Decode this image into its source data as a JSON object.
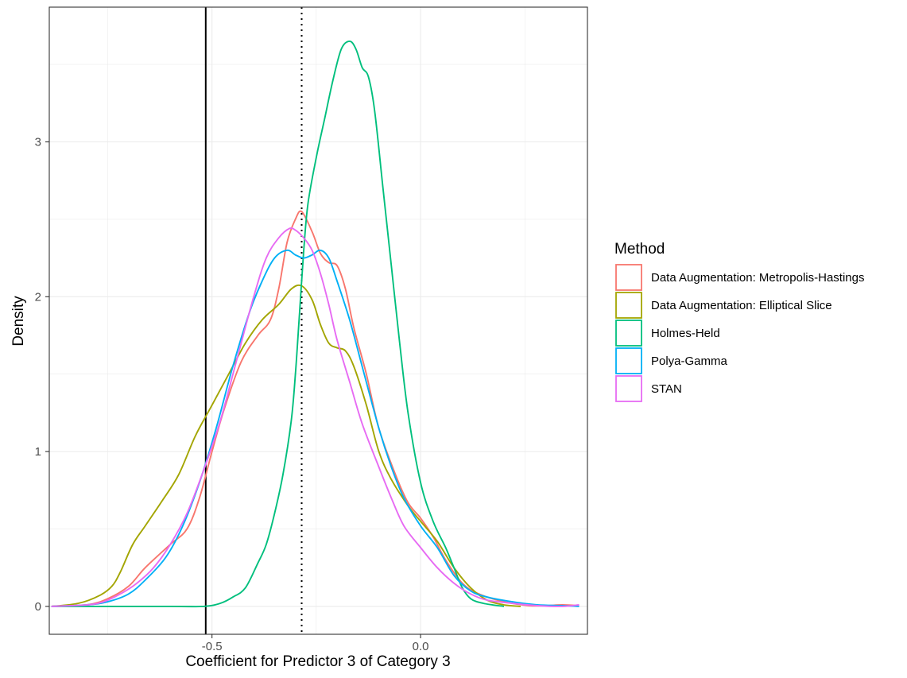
{
  "chart_data": {
    "type": "line",
    "xlabel": "Coefficient for Predictor 3 of Category 3",
    "ylabel": "Density",
    "xlim": [
      -0.89,
      0.4
    ],
    "ylim": [
      -0.18,
      3.87
    ],
    "x_ticks": [
      -0.5,
      0.0
    ],
    "x_tick_labels": [
      "-0.5",
      "0.0"
    ],
    "y_ticks": [
      0,
      1,
      2,
      3
    ],
    "y_tick_labels": [
      "0",
      "1",
      "2",
      "3"
    ],
    "grid": true,
    "legend": {
      "title": "Method",
      "position": "right"
    },
    "reference_lines": [
      {
        "x": -0.515,
        "style": "solid",
        "color": "#000000"
      },
      {
        "x": -0.285,
        "style": "dotted",
        "color": "#000000"
      }
    ],
    "series": [
      {
        "name": "Data Augmentation: Metropolis-Hastings",
        "color": "#F8766D",
        "points": [
          [
            -0.885,
            0
          ],
          [
            -0.8,
            0.01
          ],
          [
            -0.75,
            0.05
          ],
          [
            -0.7,
            0.13
          ],
          [
            -0.66,
            0.25
          ],
          [
            -0.6,
            0.4
          ],
          [
            -0.56,
            0.5
          ],
          [
            -0.53,
            0.7
          ],
          [
            -0.5,
            1.0
          ],
          [
            -0.47,
            1.28
          ],
          [
            -0.43,
            1.58
          ],
          [
            -0.39,
            1.75
          ],
          [
            -0.36,
            1.85
          ],
          [
            -0.34,
            2.05
          ],
          [
            -0.32,
            2.35
          ],
          [
            -0.3,
            2.5
          ],
          [
            -0.285,
            2.55
          ],
          [
            -0.26,
            2.42
          ],
          [
            -0.24,
            2.28
          ],
          [
            -0.22,
            2.22
          ],
          [
            -0.2,
            2.2
          ],
          [
            -0.18,
            2.05
          ],
          [
            -0.16,
            1.8
          ],
          [
            -0.13,
            1.5
          ],
          [
            -0.1,
            1.15
          ],
          [
            -0.06,
            0.85
          ],
          [
            -0.03,
            0.67
          ],
          [
            0.0,
            0.57
          ],
          [
            0.03,
            0.45
          ],
          [
            0.06,
            0.3
          ],
          [
            0.1,
            0.15
          ],
          [
            0.14,
            0.08
          ],
          [
            0.2,
            0.03
          ],
          [
            0.26,
            0.005
          ],
          [
            0.3,
            0.005
          ],
          [
            0.34,
            0.01
          ],
          [
            0.38,
            0.005
          ]
        ]
      },
      {
        "name": "Data Augmentation: Elliptical Slice",
        "color": "#A3A500",
        "points": [
          [
            -0.885,
            0
          ],
          [
            -0.82,
            0.02
          ],
          [
            -0.77,
            0.07
          ],
          [
            -0.74,
            0.13
          ],
          [
            -0.72,
            0.22
          ],
          [
            -0.69,
            0.4
          ],
          [
            -0.66,
            0.52
          ],
          [
            -0.62,
            0.68
          ],
          [
            -0.58,
            0.85
          ],
          [
            -0.54,
            1.1
          ],
          [
            -0.5,
            1.3
          ],
          [
            -0.46,
            1.5
          ],
          [
            -0.42,
            1.7
          ],
          [
            -0.38,
            1.85
          ],
          [
            -0.34,
            1.95
          ],
          [
            -0.31,
            2.05
          ],
          [
            -0.285,
            2.07
          ],
          [
            -0.26,
            1.98
          ],
          [
            -0.24,
            1.82
          ],
          [
            -0.22,
            1.7
          ],
          [
            -0.2,
            1.67
          ],
          [
            -0.18,
            1.65
          ],
          [
            -0.16,
            1.55
          ],
          [
            -0.13,
            1.3
          ],
          [
            -0.1,
            1.0
          ],
          [
            -0.07,
            0.82
          ],
          [
            -0.03,
            0.65
          ],
          [
            0.0,
            0.55
          ],
          [
            0.04,
            0.42
          ],
          [
            0.08,
            0.25
          ],
          [
            0.12,
            0.12
          ],
          [
            0.16,
            0.04
          ],
          [
            0.2,
            0.01
          ],
          [
            0.24,
            0.0
          ]
        ]
      },
      {
        "name": "Holmes-Held",
        "color": "#00BF7D",
        "points": [
          [
            -0.885,
            0
          ],
          [
            -0.6,
            0
          ],
          [
            -0.52,
            0.0
          ],
          [
            -0.48,
            0.02
          ],
          [
            -0.45,
            0.06
          ],
          [
            -0.42,
            0.12
          ],
          [
            -0.39,
            0.28
          ],
          [
            -0.37,
            0.4
          ],
          [
            -0.35,
            0.6
          ],
          [
            -0.33,
            0.85
          ],
          [
            -0.31,
            1.2
          ],
          [
            -0.3,
            1.5
          ],
          [
            -0.29,
            1.9
          ],
          [
            -0.28,
            2.3
          ],
          [
            -0.27,
            2.6
          ],
          [
            -0.25,
            2.9
          ],
          [
            -0.23,
            3.15
          ],
          [
            -0.21,
            3.4
          ],
          [
            -0.19,
            3.6
          ],
          [
            -0.17,
            3.65
          ],
          [
            -0.155,
            3.6
          ],
          [
            -0.14,
            3.48
          ],
          [
            -0.125,
            3.42
          ],
          [
            -0.11,
            3.2
          ],
          [
            -0.09,
            2.7
          ],
          [
            -0.07,
            2.2
          ],
          [
            -0.05,
            1.7
          ],
          [
            -0.03,
            1.25
          ],
          [
            0.0,
            0.8
          ],
          [
            0.03,
            0.55
          ],
          [
            0.06,
            0.38
          ],
          [
            0.08,
            0.25
          ],
          [
            0.1,
            0.12
          ],
          [
            0.12,
            0.05
          ],
          [
            0.15,
            0.02
          ],
          [
            0.2,
            0.0
          ]
        ]
      },
      {
        "name": "Polya-Gamma",
        "color": "#00B0F6",
        "points": [
          [
            -0.885,
            0
          ],
          [
            -0.8,
            0.01
          ],
          [
            -0.75,
            0.03
          ],
          [
            -0.7,
            0.08
          ],
          [
            -0.66,
            0.17
          ],
          [
            -0.61,
            0.32
          ],
          [
            -0.57,
            0.52
          ],
          [
            -0.53,
            0.8
          ],
          [
            -0.49,
            1.15
          ],
          [
            -0.45,
            1.55
          ],
          [
            -0.41,
            1.9
          ],
          [
            -0.38,
            2.1
          ],
          [
            -0.35,
            2.25
          ],
          [
            -0.32,
            2.3
          ],
          [
            -0.3,
            2.27
          ],
          [
            -0.28,
            2.25
          ],
          [
            -0.26,
            2.27
          ],
          [
            -0.24,
            2.3
          ],
          [
            -0.22,
            2.25
          ],
          [
            -0.2,
            2.1
          ],
          [
            -0.17,
            1.85
          ],
          [
            -0.14,
            1.55
          ],
          [
            -0.1,
            1.15
          ],
          [
            -0.07,
            0.9
          ],
          [
            -0.04,
            0.7
          ],
          [
            0.0,
            0.52
          ],
          [
            0.04,
            0.38
          ],
          [
            0.08,
            0.2
          ],
          [
            0.12,
            0.1
          ],
          [
            0.16,
            0.06
          ],
          [
            0.22,
            0.03
          ],
          [
            0.28,
            0.01
          ],
          [
            0.34,
            0.005
          ],
          [
            0.38,
            0.0
          ]
        ]
      },
      {
        "name": "STAN",
        "color": "#E76BF3",
        "points": [
          [
            -0.885,
            0
          ],
          [
            -0.8,
            0.01
          ],
          [
            -0.76,
            0.03
          ],
          [
            -0.72,
            0.08
          ],
          [
            -0.68,
            0.15
          ],
          [
            -0.64,
            0.25
          ],
          [
            -0.6,
            0.4
          ],
          [
            -0.56,
            0.6
          ],
          [
            -0.52,
            0.88
          ],
          [
            -0.48,
            1.2
          ],
          [
            -0.44,
            1.6
          ],
          [
            -0.4,
            2.0
          ],
          [
            -0.37,
            2.25
          ],
          [
            -0.34,
            2.38
          ],
          [
            -0.315,
            2.44
          ],
          [
            -0.3,
            2.43
          ],
          [
            -0.28,
            2.38
          ],
          [
            -0.26,
            2.3
          ],
          [
            -0.24,
            2.15
          ],
          [
            -0.22,
            1.95
          ],
          [
            -0.2,
            1.72
          ],
          [
            -0.17,
            1.45
          ],
          [
            -0.14,
            1.18
          ],
          [
            -0.1,
            0.9
          ],
          [
            -0.07,
            0.7
          ],
          [
            -0.04,
            0.52
          ],
          [
            0.0,
            0.38
          ],
          [
            0.04,
            0.25
          ],
          [
            0.08,
            0.15
          ],
          [
            0.12,
            0.08
          ],
          [
            0.16,
            0.04
          ],
          [
            0.22,
            0.02
          ],
          [
            0.28,
            0.005
          ],
          [
            0.34,
            0.0
          ],
          [
            0.38,
            0.01
          ]
        ]
      }
    ]
  }
}
